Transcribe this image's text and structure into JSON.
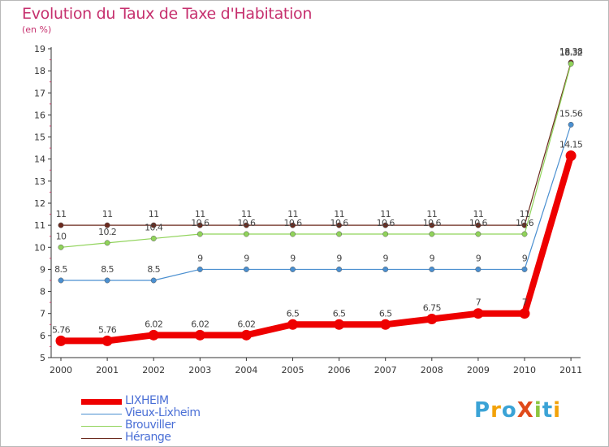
{
  "title": "Evolution du Taux de Taxe d'Habitation",
  "subtitle": "(en %)",
  "logo": {
    "text": "ProXiti",
    "colors": [
      "#3ba3d6",
      "#f2a20a",
      "#3ba3d6",
      "#e04a1a",
      "#8cc63f",
      "#3ba3d6",
      "#f2a20a"
    ]
  },
  "chart_data": {
    "type": "line",
    "x": [
      2000,
      2001,
      2002,
      2003,
      2004,
      2005,
      2006,
      2007,
      2008,
      2009,
      2010,
      2011
    ],
    "ylim": [
      5,
      19
    ],
    "yticks": [
      5,
      6,
      7,
      8,
      9,
      10,
      11,
      12,
      13,
      14,
      15,
      16,
      17,
      18,
      19
    ],
    "grid": false,
    "legend_position": "bottom-left",
    "series": [
      {
        "name": "LIXHEIM",
        "color": "#ee0000",
        "values": [
          5.76,
          5.76,
          6.02,
          6.02,
          6.02,
          6.5,
          6.5,
          6.5,
          6.75,
          7,
          7,
          14.15
        ],
        "labels": [
          "5.76",
          "5.76",
          "6.02",
          "6.02",
          "6.02",
          "6.5",
          "6.5",
          "6.5",
          "6.75",
          "7",
          "7",
          "14.15"
        ]
      },
      {
        "name": "Vieux-Lixheim",
        "color": "#4a8fd0",
        "values": [
          8.5,
          8.5,
          8.5,
          9,
          9,
          9,
          9,
          9,
          9,
          9,
          9,
          15.56
        ],
        "labels": [
          "8.5",
          "8.5",
          "8.5",
          "9",
          "9",
          "9",
          "9",
          "9",
          "9",
          "9",
          "9",
          "15.56"
        ]
      },
      {
        "name": "Brouviller",
        "color": "#90d35a",
        "values": [
          10,
          10.2,
          10.4,
          10.6,
          10.6,
          10.6,
          10.6,
          10.6,
          10.6,
          10.6,
          10.6,
          18.32
        ],
        "labels": [
          "10",
          "10.2",
          "10.4",
          "10.6",
          "10.6",
          "10.6",
          "10.6",
          "10.6",
          "10.6",
          "10.6",
          "10.6",
          "18.32"
        ]
      },
      {
        "name": "Hérange",
        "color": "#6b2a1e",
        "values": [
          11,
          11,
          11,
          11,
          11,
          11,
          11,
          11,
          11,
          11,
          11,
          18.38
        ],
        "labels": [
          "11",
          "11",
          "11",
          "11",
          "11",
          "11",
          "11",
          "11",
          "11",
          "11",
          "11",
          "18.38"
        ]
      }
    ]
  }
}
